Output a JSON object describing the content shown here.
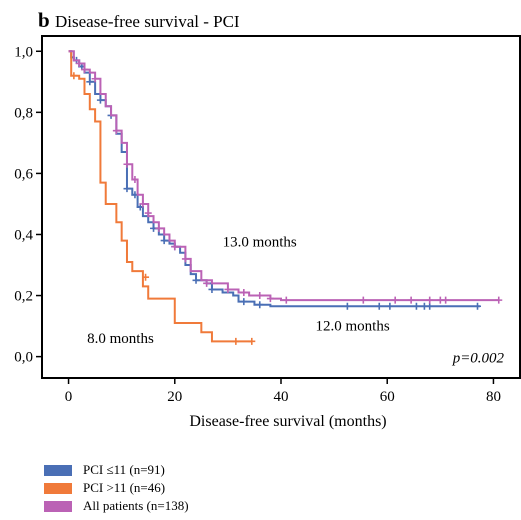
{
  "chart_data": {
    "type": "line",
    "panel_label": "b",
    "title": "Disease-free survival - PCI",
    "xlabel": "Disease-free survival (months)",
    "ylabel": "",
    "xlim": [
      -5,
      85
    ],
    "ylim": [
      -0.07,
      1.05
    ],
    "x_ticks": [
      0,
      20,
      40,
      60,
      80
    ],
    "x_tick_labels": [
      "0",
      "20",
      "40",
      "60",
      "80"
    ],
    "y_ticks": [
      0,
      0.2,
      0.4,
      0.6,
      0.8,
      1.0
    ],
    "y_tick_labels": [
      "0,0",
      "0,2",
      "0,4",
      "0,6",
      "0,8",
      "1,0"
    ],
    "grid": false,
    "legend_position": "bottom-left-outside",
    "series": [
      {
        "name": "PCI ≤11 (n=91)",
        "color": "#4a6fb5",
        "steps": [
          [
            0,
            1.0
          ],
          [
            0.5,
            0.98
          ],
          [
            1,
            0.97
          ],
          [
            2,
            0.95
          ],
          [
            3,
            0.93
          ],
          [
            4,
            0.9
          ],
          [
            5,
            0.86
          ],
          [
            6,
            0.84
          ],
          [
            7,
            0.82
          ],
          [
            8,
            0.79
          ],
          [
            9,
            0.73
          ],
          [
            10,
            0.67
          ],
          [
            11,
            0.55
          ],
          [
            12,
            0.53
          ],
          [
            13,
            0.49
          ],
          [
            14,
            0.46
          ],
          [
            15,
            0.44
          ],
          [
            16,
            0.42
          ],
          [
            17,
            0.4
          ],
          [
            18,
            0.38
          ],
          [
            19,
            0.37
          ],
          [
            20,
            0.36
          ],
          [
            21,
            0.34
          ],
          [
            22,
            0.3
          ],
          [
            23,
            0.27
          ],
          [
            24,
            0.25
          ],
          [
            26,
            0.24
          ],
          [
            27,
            0.22
          ],
          [
            29,
            0.21
          ],
          [
            31,
            0.2
          ],
          [
            32,
            0.18
          ],
          [
            35,
            0.17
          ],
          [
            38,
            0.165
          ],
          [
            77.5,
            0.165
          ]
        ],
        "censor": [
          [
            1.5,
            0.97
          ],
          [
            2.5,
            0.95
          ],
          [
            4,
            0.9
          ],
          [
            6,
            0.84
          ],
          [
            8,
            0.79
          ],
          [
            11,
            0.55
          ],
          [
            12.5,
            0.53
          ],
          [
            13.5,
            0.49
          ],
          [
            16,
            0.42
          ],
          [
            18,
            0.38
          ],
          [
            20,
            0.36
          ],
          [
            24,
            0.25
          ],
          [
            27,
            0.22
          ],
          [
            33,
            0.18
          ],
          [
            36,
            0.17
          ],
          [
            52.5,
            0.165
          ],
          [
            58.5,
            0.165
          ],
          [
            60.5,
            0.165
          ],
          [
            65.5,
            0.165
          ],
          [
            67,
            0.165
          ],
          [
            68,
            0.165
          ],
          [
            77,
            0.165
          ]
        ]
      },
      {
        "name": "PCI >11 (n=46)",
        "color": "#f07a3a",
        "steps": [
          [
            0,
            1.0
          ],
          [
            0.5,
            0.92
          ],
          [
            2,
            0.91
          ],
          [
            3,
            0.86
          ],
          [
            4,
            0.81
          ],
          [
            5,
            0.77
          ],
          [
            6,
            0.57
          ],
          [
            7,
            0.5
          ],
          [
            9,
            0.44
          ],
          [
            10,
            0.38
          ],
          [
            11,
            0.31
          ],
          [
            12,
            0.28
          ],
          [
            14,
            0.23
          ],
          [
            15,
            0.19
          ],
          [
            20,
            0.11
          ],
          [
            25,
            0.08
          ],
          [
            27,
            0.05
          ],
          [
            34.5,
            0.05
          ]
        ],
        "censor": [
          [
            1,
            0.92
          ],
          [
            14.5,
            0.26
          ],
          [
            31.5,
            0.05
          ],
          [
            34.5,
            0.05
          ]
        ]
      },
      {
        "name": "All patients (n=138)",
        "color": "#bb62b5",
        "steps": [
          [
            0,
            1.0
          ],
          [
            1,
            0.97
          ],
          [
            2,
            0.96
          ],
          [
            3,
            0.94
          ],
          [
            4,
            0.93
          ],
          [
            5,
            0.91
          ],
          [
            6,
            0.86
          ],
          [
            7,
            0.82
          ],
          [
            8,
            0.79
          ],
          [
            9,
            0.74
          ],
          [
            10,
            0.7
          ],
          [
            11,
            0.63
          ],
          [
            12,
            0.58
          ],
          [
            13,
            0.53
          ],
          [
            14,
            0.5
          ],
          [
            15,
            0.46
          ],
          [
            16,
            0.44
          ],
          [
            17,
            0.42
          ],
          [
            18,
            0.4
          ],
          [
            19,
            0.38
          ],
          [
            20,
            0.36
          ],
          [
            22,
            0.32
          ],
          [
            23,
            0.28
          ],
          [
            25,
            0.25
          ],
          [
            27,
            0.24
          ],
          [
            30,
            0.22
          ],
          [
            32,
            0.21
          ],
          [
            34,
            0.2
          ],
          [
            38,
            0.19
          ],
          [
            40,
            0.185
          ],
          [
            81,
            0.185
          ]
        ],
        "censor": [
          [
            2,
            0.96
          ],
          [
            3,
            0.94
          ],
          [
            5,
            0.91
          ],
          [
            9,
            0.74
          ],
          [
            11,
            0.63
          ],
          [
            12.5,
            0.58
          ],
          [
            14,
            0.5
          ],
          [
            15,
            0.47
          ],
          [
            17,
            0.42
          ],
          [
            20,
            0.36
          ],
          [
            22,
            0.32
          ],
          [
            26,
            0.24
          ],
          [
            30,
            0.22
          ],
          [
            33,
            0.21
          ],
          [
            36,
            0.2
          ],
          [
            38,
            0.19
          ],
          [
            41,
            0.185
          ],
          [
            55.5,
            0.185
          ],
          [
            61.5,
            0.185
          ],
          [
            64.5,
            0.185
          ],
          [
            68,
            0.185
          ],
          [
            70,
            0.185
          ],
          [
            71,
            0.185
          ],
          [
            81,
            0.185
          ]
        ]
      }
    ],
    "annotations": [
      {
        "text": "13.0 months",
        "x": 29,
        "y": 0.36
      },
      {
        "text": "12.0 months",
        "x": 46.5,
        "y": 0.085
      },
      {
        "text": "8.0 months",
        "x": 3.5,
        "y": 0.045
      },
      {
        "text": "p=0.002",
        "x": 82,
        "y": -0.02
      }
    ]
  }
}
